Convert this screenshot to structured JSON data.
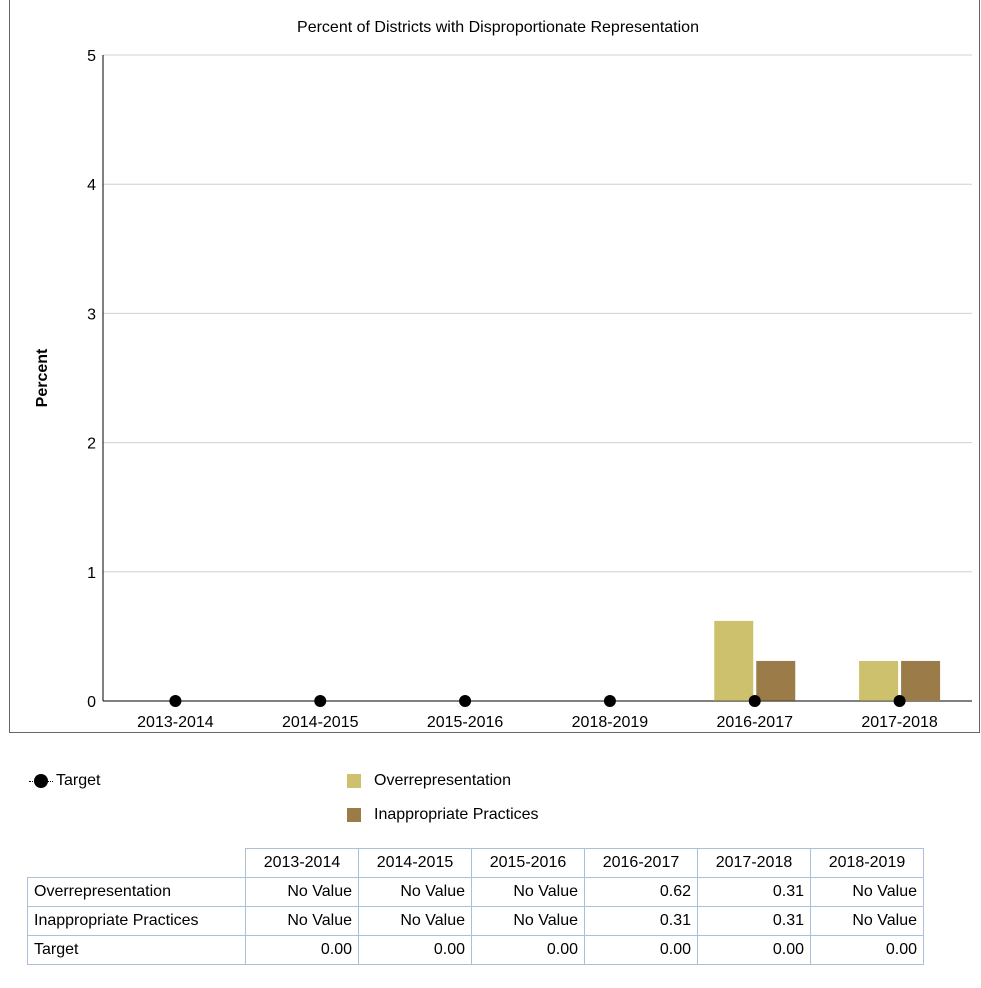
{
  "chart_data": {
    "type": "bar",
    "title": "Percent of Districts with Disproportionate Representation",
    "ylabel": "Percent",
    "xlabel": "",
    "ylim": [
      0,
      5
    ],
    "yticks": [
      0,
      1,
      2,
      3,
      4,
      5
    ],
    "grid": true,
    "categories": [
      "2013-2014",
      "2014-2015",
      "2015-2016",
      "2018-2019",
      "2016-2017",
      "2017-2018"
    ],
    "series": [
      {
        "name": "Overrepresentation",
        "kind": "bar",
        "color": "#cdc16e",
        "values": [
          null,
          null,
          null,
          null,
          0.62,
          0.31
        ]
      },
      {
        "name": "Inappropriate Practices",
        "kind": "bar",
        "color": "#9b7b48",
        "values": [
          null,
          null,
          null,
          null,
          0.31,
          0.31
        ]
      },
      {
        "name": "Target",
        "kind": "line-marker",
        "color": "#000000",
        "values": [
          0,
          0,
          0,
          0,
          0,
          0
        ]
      }
    ],
    "legend": [
      "Target",
      "Overrepresentation",
      "Inappropriate Practices"
    ]
  },
  "table": {
    "columns": [
      "2013-2014",
      "2014-2015",
      "2015-2016",
      "2016-2017",
      "2017-2018",
      "2018-2019"
    ],
    "rows": [
      {
        "label": "Overrepresentation",
        "cells": [
          "No Value",
          "No Value",
          "No Value",
          "0.62",
          "0.31",
          "No Value"
        ]
      },
      {
        "label": "Inappropriate Practices",
        "cells": [
          "No Value",
          "No Value",
          "No Value",
          "0.31",
          "0.31",
          "No Value"
        ]
      },
      {
        "label": "Target",
        "cells": [
          "0.00",
          "0.00",
          "0.00",
          "0.00",
          "0.00",
          "0.00"
        ]
      }
    ]
  }
}
